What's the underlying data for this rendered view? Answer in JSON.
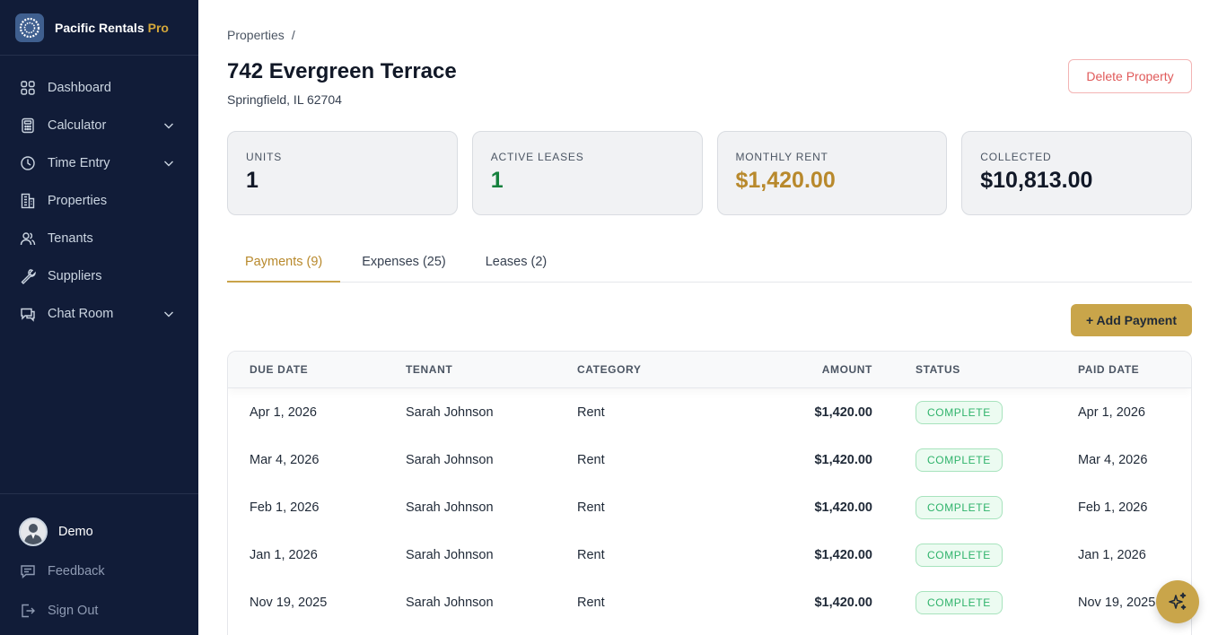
{
  "brand": {
    "name": "Pacific Rentals",
    "suffix": "Pro"
  },
  "nav": {
    "items": [
      {
        "label": "Dashboard",
        "icon": "dashboard-icon"
      },
      {
        "label": "Calculator",
        "icon": "calculator-icon",
        "expandable": true
      },
      {
        "label": "Time Entry",
        "icon": "clock-icon",
        "expandable": true
      },
      {
        "label": "Properties",
        "icon": "building-icon"
      },
      {
        "label": "Tenants",
        "icon": "users-icon"
      },
      {
        "label": "Suppliers",
        "icon": "wrench-icon"
      },
      {
        "label": "Chat Room",
        "icon": "chat-icon",
        "expandable": true
      }
    ]
  },
  "user": {
    "name": "Demo"
  },
  "bottom": {
    "feedback": "Feedback",
    "sign_out": "Sign Out"
  },
  "breadcrumb": {
    "root": "Properties",
    "separator": "/"
  },
  "property": {
    "title": "742 Evergreen Terrace",
    "address": "Springfield, IL 62704"
  },
  "actions": {
    "delete": "Delete Property",
    "add_payment": "+ Add Payment"
  },
  "stats": [
    {
      "label": "UNITS",
      "value": "1"
    },
    {
      "label": "ACTIVE LEASES",
      "value": "1"
    },
    {
      "label": "MONTHLY RENT",
      "value": "$1,420.00"
    },
    {
      "label": "COLLECTED",
      "value": "$10,813.00"
    }
  ],
  "tabs": [
    {
      "label": "Payments (9)",
      "active": true
    },
    {
      "label": "Expenses (25)",
      "active": false
    },
    {
      "label": "Leases (2)",
      "active": false
    }
  ],
  "table": {
    "headers": [
      "DUE DATE",
      "TENANT",
      "CATEGORY",
      "AMOUNT",
      "STATUS",
      "PAID DATE"
    ],
    "rows": [
      {
        "due": "Apr 1, 2026",
        "tenant": "Sarah Johnson",
        "category": "Rent",
        "amount": "$1,420.00",
        "status": "COMPLETE",
        "paid": "Apr 1, 2026"
      },
      {
        "due": "Mar 4, 2026",
        "tenant": "Sarah Johnson",
        "category": "Rent",
        "amount": "$1,420.00",
        "status": "COMPLETE",
        "paid": "Mar 4, 2026"
      },
      {
        "due": "Feb 1, 2026",
        "tenant": "Sarah Johnson",
        "category": "Rent",
        "amount": "$1,420.00",
        "status": "COMPLETE",
        "paid": "Feb 1, 2026"
      },
      {
        "due": "Jan 1, 2026",
        "tenant": "Sarah Johnson",
        "category": "Rent",
        "amount": "$1,420.00",
        "status": "COMPLETE",
        "paid": "Jan 1, 2026"
      },
      {
        "due": "Nov 19, 2025",
        "tenant": "Sarah Johnson",
        "category": "Rent",
        "amount": "$1,420.00",
        "status": "COMPLETE",
        "paid": "Nov 19, 2025"
      }
    ]
  },
  "colors": {
    "sidebar": "#111c38",
    "accent": "#c9a54a",
    "success": "#2fb36b",
    "danger": "#e05a5a"
  },
  "fab": {
    "icon": "sparkles-icon"
  }
}
